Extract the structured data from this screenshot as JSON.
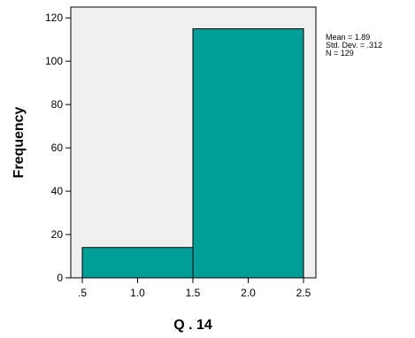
{
  "chart_data": {
    "type": "bar",
    "subtype": "histogram",
    "bins": [
      {
        "x0": 0.5,
        "x1": 1.5,
        "value": 14
      },
      {
        "x0": 1.5,
        "x1": 2.5,
        "value": 115
      }
    ],
    "xlabel": "Q . 14",
    "ylabel": "Frequency",
    "xlim": [
      0.5,
      2.5
    ],
    "ylim": [
      0,
      125
    ],
    "xticks": [
      {
        "value": 0.5,
        "label": ".5"
      },
      {
        "value": 1.0,
        "label": "1.0"
      },
      {
        "value": 1.5,
        "label": "1.5"
      },
      {
        "value": 2.0,
        "label": "2.0"
      },
      {
        "value": 2.5,
        "label": "2.5"
      }
    ],
    "yticks": [
      {
        "value": 0,
        "label": "0"
      },
      {
        "value": 20,
        "label": "20"
      },
      {
        "value": 40,
        "label": "40"
      },
      {
        "value": 60,
        "label": "60"
      },
      {
        "value": 80,
        "label": "80"
      },
      {
        "value": 100,
        "label": "100"
      },
      {
        "value": 120,
        "label": "120"
      }
    ],
    "stats": [
      "Mean = 1.89",
      "Std. Dev. = .312",
      "N = 129"
    ],
    "grid": false,
    "bar_color": "#009e96",
    "plot_background": "#f0f0f0"
  }
}
